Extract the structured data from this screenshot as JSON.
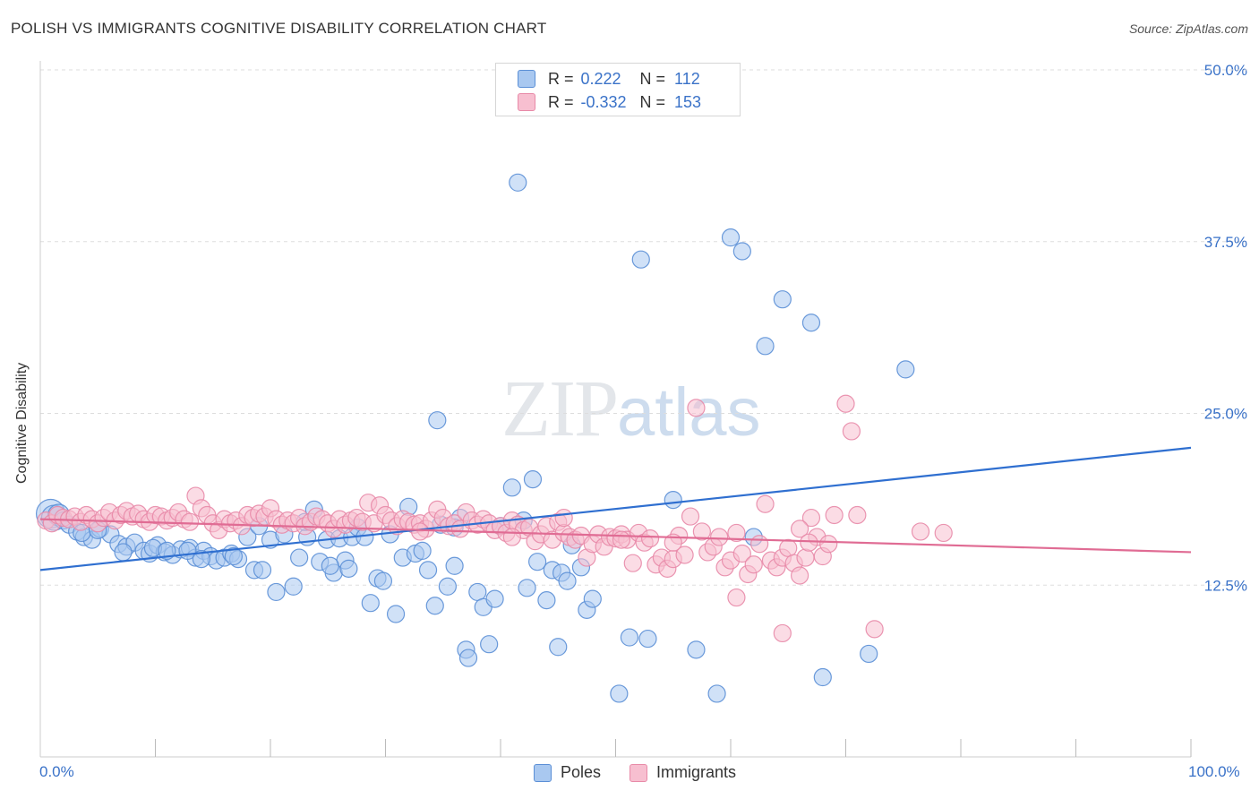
{
  "title": "POLISH VS IMMIGRANTS COGNITIVE DISABILITY CORRELATION CHART",
  "source": "Source: ZipAtlas.com",
  "watermark": {
    "zip": "ZIP",
    "atlas": "atlas"
  },
  "legend": {
    "r_label": "R =",
    "n_label": "N =",
    "rows": [
      {
        "name": "Poles",
        "r": "0.222",
        "n": "112",
        "fill": "#a9c8f0",
        "stroke": "#5b8fd6"
      },
      {
        "name": "Immigrants",
        "r": "-0.332",
        "n": "153",
        "fill": "#f7bfd0",
        "stroke": "#e88aa8"
      }
    ]
  },
  "chart_data": {
    "type": "scatter",
    "ylabel": "Cognitive Disability",
    "x_ticks": [
      "0.0%",
      "100.0%"
    ],
    "y_ticks": [
      "12.5%",
      "25.0%",
      "37.5%",
      "50.0%"
    ],
    "xlim": [
      0,
      100
    ],
    "ylim": [
      0,
      50
    ],
    "grid": "horizontal-dashed",
    "series": [
      {
        "name": "Poles",
        "color": "#5b8fd6",
        "fill": "#a9c8f0",
        "trend": {
          "x": [
            0,
            100
          ],
          "y": [
            13.6,
            22.5
          ]
        },
        "points": [
          [
            0.9,
            17.7
          ],
          [
            1.2,
            17.4
          ],
          [
            1.6,
            17.6
          ],
          [
            2.0,
            17.2
          ],
          [
            2.5,
            16.9
          ],
          [
            3.2,
            16.4
          ],
          [
            3.8,
            16.0
          ],
          [
            4.5,
            15.8
          ],
          [
            5.2,
            16.6
          ],
          [
            6.1,
            16.2
          ],
          [
            6.8,
            15.5
          ],
          [
            7.5,
            15.3
          ],
          [
            8.2,
            15.6
          ],
          [
            9.0,
            15.0
          ],
          [
            9.5,
            14.8
          ],
          [
            10.2,
            15.4
          ],
          [
            10.8,
            14.9
          ],
          [
            11.5,
            14.7
          ],
          [
            12.2,
            15.1
          ],
          [
            13.0,
            15.2
          ],
          [
            13.5,
            14.5
          ],
          [
            14.2,
            15.0
          ],
          [
            14.8,
            14.6
          ],
          [
            15.3,
            14.3
          ],
          [
            16.0,
            14.5
          ],
          [
            16.6,
            14.8
          ],
          [
            17.2,
            14.4
          ],
          [
            18.0,
            16.0
          ],
          [
            18.6,
            13.6
          ],
          [
            19.3,
            13.6
          ],
          [
            20.0,
            15.8
          ],
          [
            20.5,
            12.0
          ],
          [
            21.2,
            16.2
          ],
          [
            22.0,
            12.4
          ],
          [
            22.5,
            14.5
          ],
          [
            23.2,
            16.0
          ],
          [
            23.8,
            18.0
          ],
          [
            24.3,
            14.2
          ],
          [
            24.9,
            15.8
          ],
          [
            25.5,
            13.4
          ],
          [
            26.0,
            15.9
          ],
          [
            26.5,
            14.3
          ],
          [
            27.1,
            16.0
          ],
          [
            27.6,
            16.7
          ],
          [
            28.2,
            16.0
          ],
          [
            28.7,
            11.2
          ],
          [
            29.3,
            13.0
          ],
          [
            29.8,
            12.8
          ],
          [
            30.4,
            16.2
          ],
          [
            30.9,
            10.4
          ],
          [
            31.5,
            14.5
          ],
          [
            32.0,
            18.2
          ],
          [
            32.6,
            14.8
          ],
          [
            33.2,
            15.0
          ],
          [
            33.7,
            13.6
          ],
          [
            34.3,
            11.0
          ],
          [
            34.8,
            16.9
          ],
          [
            35.4,
            12.4
          ],
          [
            36.0,
            13.9
          ],
          [
            36.5,
            17.4
          ],
          [
            37.0,
            7.8
          ],
          [
            37.2,
            7.2
          ],
          [
            38.0,
            12.0
          ],
          [
            38.5,
            10.9
          ],
          [
            39.0,
            8.2
          ],
          [
            39.5,
            11.5
          ],
          [
            40.0,
            16.8
          ],
          [
            41.0,
            19.6
          ],
          [
            41.5,
            41.8
          ],
          [
            42.0,
            17.2
          ],
          [
            42.3,
            12.3
          ],
          [
            42.8,
            20.2
          ],
          [
            43.2,
            14.2
          ],
          [
            44.0,
            11.4
          ],
          [
            44.5,
            13.6
          ],
          [
            45.0,
            8.0
          ],
          [
            45.3,
            13.4
          ],
          [
            45.8,
            12.8
          ],
          [
            46.2,
            15.4
          ],
          [
            47.0,
            13.8
          ],
          [
            47.5,
            10.7
          ],
          [
            48.0,
            11.5
          ],
          [
            50.3,
            4.6
          ],
          [
            51.2,
            8.7
          ],
          [
            52.2,
            36.2
          ],
          [
            52.8,
            8.6
          ],
          [
            55.0,
            18.7
          ],
          [
            57.0,
            7.8
          ],
          [
            58.8,
            4.6
          ],
          [
            60.0,
            37.8
          ],
          [
            61.0,
            36.8
          ],
          [
            63.0,
            29.9
          ],
          [
            64.5,
            33.3
          ],
          [
            67.0,
            31.6
          ],
          [
            68.0,
            5.8
          ],
          [
            72.0,
            7.5
          ],
          [
            75.2,
            28.2
          ],
          [
            62.0,
            16.0
          ],
          [
            19.0,
            16.8
          ],
          [
            16.8,
            14.6
          ],
          [
            3.6,
            16.3
          ],
          [
            5.0,
            16.5
          ],
          [
            7.2,
            14.9
          ],
          [
            9.8,
            15.2
          ],
          [
            11.0,
            15.0
          ],
          [
            12.8,
            15.0
          ],
          [
            14.0,
            14.4
          ],
          [
            34.5,
            24.5
          ],
          [
            23.0,
            17.1
          ],
          [
            25.2,
            13.9
          ],
          [
            26.8,
            13.7
          ],
          [
            36.0,
            16.7
          ]
        ]
      },
      {
        "name": "Immigrants",
        "color": "#e88aa8",
        "fill": "#f7bfd0",
        "trend": {
          "x": [
            0,
            100
          ],
          "y": [
            17.3,
            14.9
          ]
        },
        "points": [
          [
            0.5,
            17.2
          ],
          [
            1.0,
            17.0
          ],
          [
            1.5,
            17.6
          ],
          [
            2.0,
            17.4
          ],
          [
            2.5,
            17.3
          ],
          [
            3.0,
            17.5
          ],
          [
            3.5,
            17.1
          ],
          [
            4.0,
            17.6
          ],
          [
            4.5,
            17.3
          ],
          [
            5.0,
            17.0
          ],
          [
            5.5,
            17.4
          ],
          [
            6.0,
            17.8
          ],
          [
            6.5,
            17.2
          ],
          [
            7.0,
            17.6
          ],
          [
            7.5,
            17.9
          ],
          [
            8.0,
            17.5
          ],
          [
            8.5,
            17.7
          ],
          [
            9.0,
            17.3
          ],
          [
            9.5,
            17.1
          ],
          [
            10.0,
            17.6
          ],
          [
            10.5,
            17.5
          ],
          [
            11.0,
            17.2
          ],
          [
            11.5,
            17.4
          ],
          [
            12.0,
            17.8
          ],
          [
            12.5,
            17.3
          ],
          [
            13.0,
            17.1
          ],
          [
            13.5,
            19.0
          ],
          [
            14.0,
            18.1
          ],
          [
            14.5,
            17.6
          ],
          [
            15.0,
            17.0
          ],
          [
            15.5,
            16.5
          ],
          [
            16.0,
            17.3
          ],
          [
            16.5,
            17.0
          ],
          [
            17.0,
            17.2
          ],
          [
            17.5,
            16.8
          ],
          [
            18.0,
            17.6
          ],
          [
            18.5,
            17.4
          ],
          [
            19.0,
            17.7
          ],
          [
            19.5,
            17.5
          ],
          [
            20.0,
            18.1
          ],
          [
            20.5,
            17.3
          ],
          [
            21.0,
            16.9
          ],
          [
            21.5,
            17.2
          ],
          [
            22.0,
            17.0
          ],
          [
            22.5,
            17.4
          ],
          [
            23.0,
            16.8
          ],
          [
            23.5,
            17.1
          ],
          [
            24.0,
            17.5
          ],
          [
            24.5,
            17.3
          ],
          [
            25.0,
            17.0
          ],
          [
            25.5,
            16.6
          ],
          [
            26.0,
            17.3
          ],
          [
            26.5,
            16.9
          ],
          [
            27.0,
            17.2
          ],
          [
            27.5,
            17.4
          ],
          [
            28.0,
            17.1
          ],
          [
            28.5,
            18.5
          ],
          [
            29.0,
            17.0
          ],
          [
            29.5,
            18.3
          ],
          [
            30.0,
            17.6
          ],
          [
            30.5,
            17.2
          ],
          [
            31.0,
            16.8
          ],
          [
            31.5,
            17.3
          ],
          [
            32.0,
            17.1
          ],
          [
            32.5,
            16.9
          ],
          [
            33.0,
            17.0
          ],
          [
            33.5,
            16.6
          ],
          [
            34.0,
            17.2
          ],
          [
            34.5,
            18.0
          ],
          [
            35.0,
            17.4
          ],
          [
            35.5,
            16.8
          ],
          [
            36.0,
            17.0
          ],
          [
            36.5,
            16.6
          ],
          [
            37.0,
            17.8
          ],
          [
            37.5,
            17.2
          ],
          [
            38.0,
            16.9
          ],
          [
            38.5,
            17.3
          ],
          [
            39.0,
            17.0
          ],
          [
            39.5,
            16.5
          ],
          [
            40.0,
            16.8
          ],
          [
            40.5,
            16.3
          ],
          [
            41.0,
            17.2
          ],
          [
            41.5,
            16.9
          ],
          [
            42.0,
            16.5
          ],
          [
            42.5,
            16.7
          ],
          [
            43.0,
            15.7
          ],
          [
            43.5,
            16.2
          ],
          [
            44.0,
            16.8
          ],
          [
            44.5,
            15.8
          ],
          [
            45.0,
            17.1
          ],
          [
            45.5,
            16.3
          ],
          [
            46.0,
            16.0
          ],
          [
            46.5,
            15.8
          ],
          [
            47.0,
            16.1
          ],
          [
            47.5,
            14.5
          ],
          [
            48.0,
            15.5
          ],
          [
            48.5,
            16.2
          ],
          [
            49.0,
            15.3
          ],
          [
            49.5,
            16.0
          ],
          [
            50.0,
            15.9
          ],
          [
            50.5,
            16.2
          ],
          [
            51.0,
            15.8
          ],
          [
            51.5,
            14.1
          ],
          [
            52.0,
            16.3
          ],
          [
            52.5,
            15.6
          ],
          [
            53.0,
            15.9
          ],
          [
            53.5,
            14.0
          ],
          [
            54.0,
            14.5
          ],
          [
            54.5,
            13.7
          ],
          [
            55.0,
            14.4
          ],
          [
            55.5,
            16.1
          ],
          [
            56.0,
            14.7
          ],
          [
            56.5,
            17.5
          ],
          [
            57.0,
            25.4
          ],
          [
            57.5,
            16.4
          ],
          [
            58.0,
            14.9
          ],
          [
            58.5,
            15.3
          ],
          [
            59.0,
            16.0
          ],
          [
            59.5,
            13.8
          ],
          [
            60.0,
            14.3
          ],
          [
            60.5,
            11.6
          ],
          [
            61.0,
            14.8
          ],
          [
            61.5,
            13.3
          ],
          [
            62.0,
            14.0
          ],
          [
            62.5,
            15.5
          ],
          [
            63.0,
            18.4
          ],
          [
            63.5,
            14.3
          ],
          [
            64.0,
            13.8
          ],
          [
            64.5,
            14.5
          ],
          [
            65.0,
            15.2
          ],
          [
            65.5,
            14.1
          ],
          [
            66.0,
            13.2
          ],
          [
            66.5,
            14.5
          ],
          [
            67.0,
            17.4
          ],
          [
            67.5,
            16.0
          ],
          [
            68.0,
            14.6
          ],
          [
            68.5,
            15.5
          ],
          [
            69.0,
            17.6
          ],
          [
            70.0,
            25.7
          ],
          [
            70.5,
            23.7
          ],
          [
            71.0,
            17.6
          ],
          [
            72.5,
            9.3
          ],
          [
            76.5,
            16.4
          ],
          [
            78.5,
            16.3
          ],
          [
            33.0,
            16.4
          ],
          [
            41.0,
            16.0
          ],
          [
            45.5,
            17.4
          ],
          [
            50.5,
            15.8
          ],
          [
            55.0,
            15.6
          ],
          [
            60.5,
            16.3
          ],
          [
            64.5,
            9.0
          ],
          [
            66.0,
            16.6
          ],
          [
            66.8,
            15.6
          ]
        ]
      }
    ]
  }
}
